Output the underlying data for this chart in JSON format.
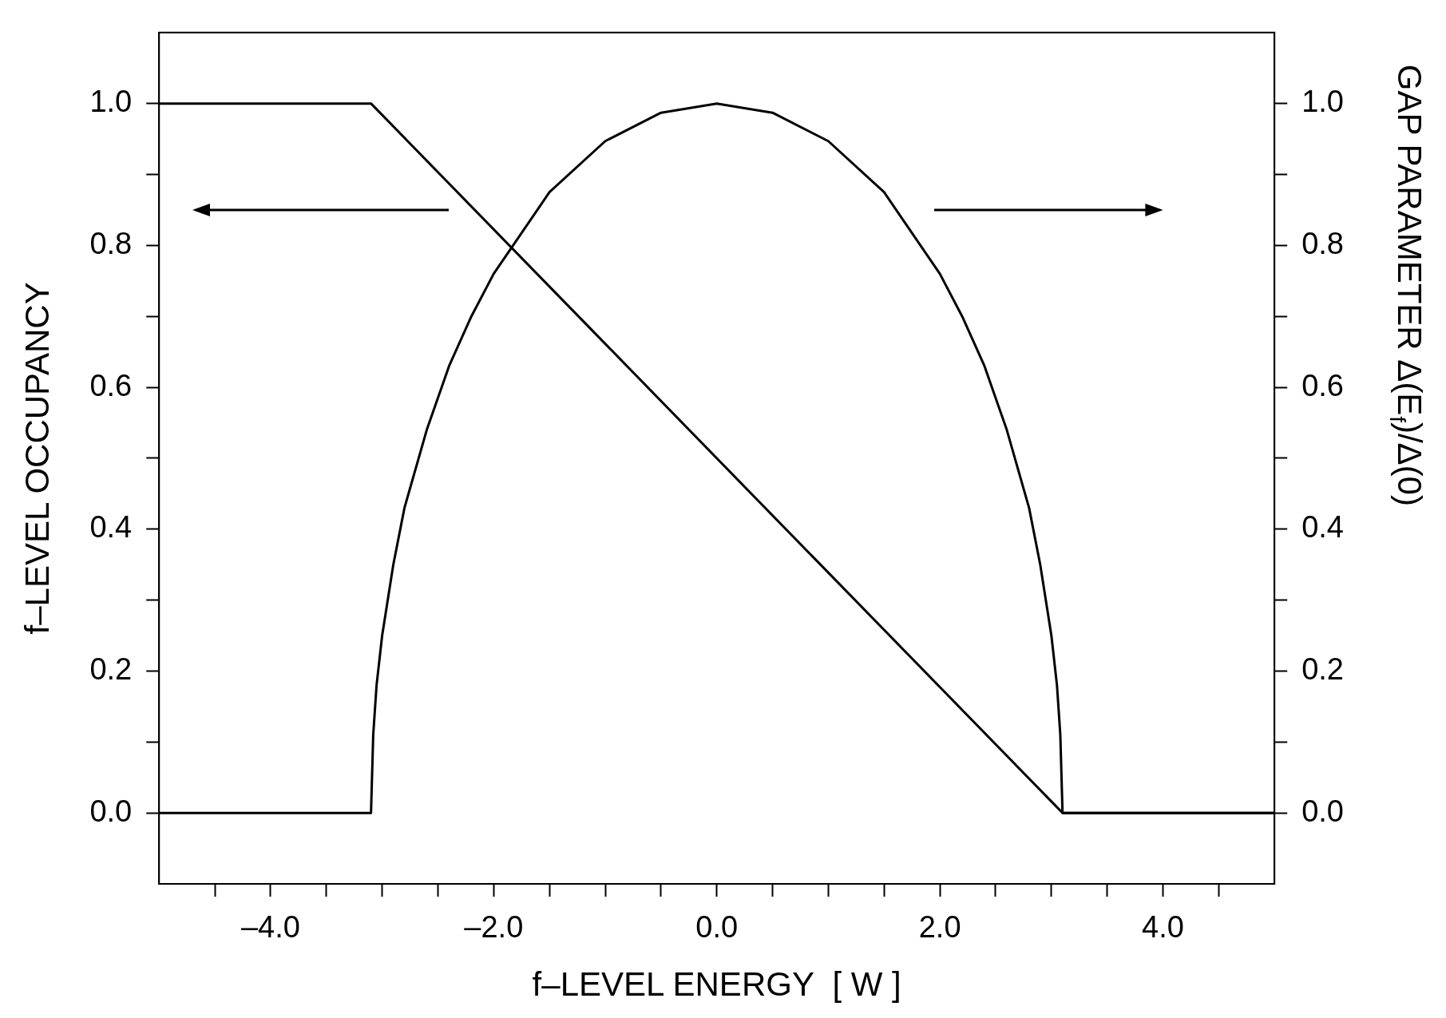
{
  "chart_data": {
    "type": "line",
    "xlabel": "f–LEVEL ENERGY  [ W ]",
    "ylabel": "f–LEVEL OCCUPANCY",
    "y2label": "GAP PARAMETER Δ(E$_{f}$)/Δ(0)",
    "xlim": [
      -5,
      5
    ],
    "xticks": [
      {
        "value": -4,
        "label": "–4.0"
      },
      {
        "value": -2,
        "label": "–2.0"
      },
      {
        "value": 0,
        "label": "0.0"
      },
      {
        "value": 2,
        "label": "2.0"
      },
      {
        "value": 4,
        "label": "4.0"
      },
      {
        "value": -4.5,
        "label": null
      },
      {
        "value": -3.5,
        "label": null
      },
      {
        "value": -3,
        "label": null
      },
      {
        "value": -2.5,
        "label": null
      },
      {
        "value": -1.5,
        "label": null
      },
      {
        "value": -1,
        "label": null
      },
      {
        "value": -0.5,
        "label": null
      },
      {
        "value": 0.5,
        "label": null
      },
      {
        "value": 1,
        "label": null
      },
      {
        "value": 1.5,
        "label": null
      },
      {
        "value": 2.5,
        "label": null
      },
      {
        "value": 3,
        "label": null
      },
      {
        "value": 3.5,
        "label": null
      },
      {
        "value": 4.5,
        "label": null
      }
    ],
    "ylim": [
      -0.1,
      1.1
    ],
    "yticks": [
      {
        "value": 0,
        "label": "0.0"
      },
      {
        "value": 0.2,
        "label": "0.2"
      },
      {
        "value": 0.4,
        "label": "0.4"
      },
      {
        "value": 0.6,
        "label": "0.6"
      },
      {
        "value": 0.8,
        "label": "0.8"
      },
      {
        "value": 1,
        "label": "1.0"
      },
      {
        "value": 0.1,
        "label": null
      },
      {
        "value": 0.3,
        "label": null
      },
      {
        "value": 0.5,
        "label": null
      },
      {
        "value": 0.7,
        "label": null
      },
      {
        "value": 0.9,
        "label": null
      }
    ],
    "y2lim": [
      -0.1,
      1.1
    ],
    "y2ticks": [
      {
        "value": 0,
        "label": "0.0"
      },
      {
        "value": 0.2,
        "label": "0.2"
      },
      {
        "value": 0.4,
        "label": "0.4"
      },
      {
        "value": 0.6,
        "label": "0.6"
      },
      {
        "value": 0.8,
        "label": "0.8"
      },
      {
        "value": 1,
        "label": "1.0"
      },
      {
        "value": 0.1,
        "label": null
      },
      {
        "value": 0.3,
        "label": null
      },
      {
        "value": 0.5,
        "label": null
      },
      {
        "value": 0.7,
        "label": null
      },
      {
        "value": 0.9,
        "label": null
      }
    ],
    "grid": false,
    "legend": false,
    "marker": "none",
    "line_style": "solid",
    "series": [
      {
        "color": "#000000",
        "x": [
          -5,
          -3.1,
          3.1,
          5
        ],
        "values": [
          1,
          1,
          0,
          0
        ]
      },
      {
        "color": "#000000",
        "axis": "y2",
        "x": [
          -5,
          -3.1,
          -3.08,
          -3.05,
          -3.0,
          -2.9,
          -2.8,
          -2.6,
          -2.4,
          -2.2,
          -2.0,
          -1.5,
          -1.0,
          -0.5,
          0,
          0.5,
          1.0,
          1.5,
          2.0,
          2.2,
          2.4,
          2.6,
          2.8,
          2.9,
          3.0,
          3.05,
          3.08,
          3.1,
          5
        ],
        "values": [
          0,
          0,
          0.11,
          0.18,
          0.25,
          0.35,
          0.43,
          0.54,
          0.63,
          0.7,
          0.76,
          0.875,
          0.947,
          0.987,
          1,
          0.987,
          0.947,
          0.875,
          0.76,
          0.7,
          0.63,
          0.54,
          0.43,
          0.35,
          0.25,
          0.18,
          0.11,
          0,
          0
        ]
      }
    ]
  }
}
